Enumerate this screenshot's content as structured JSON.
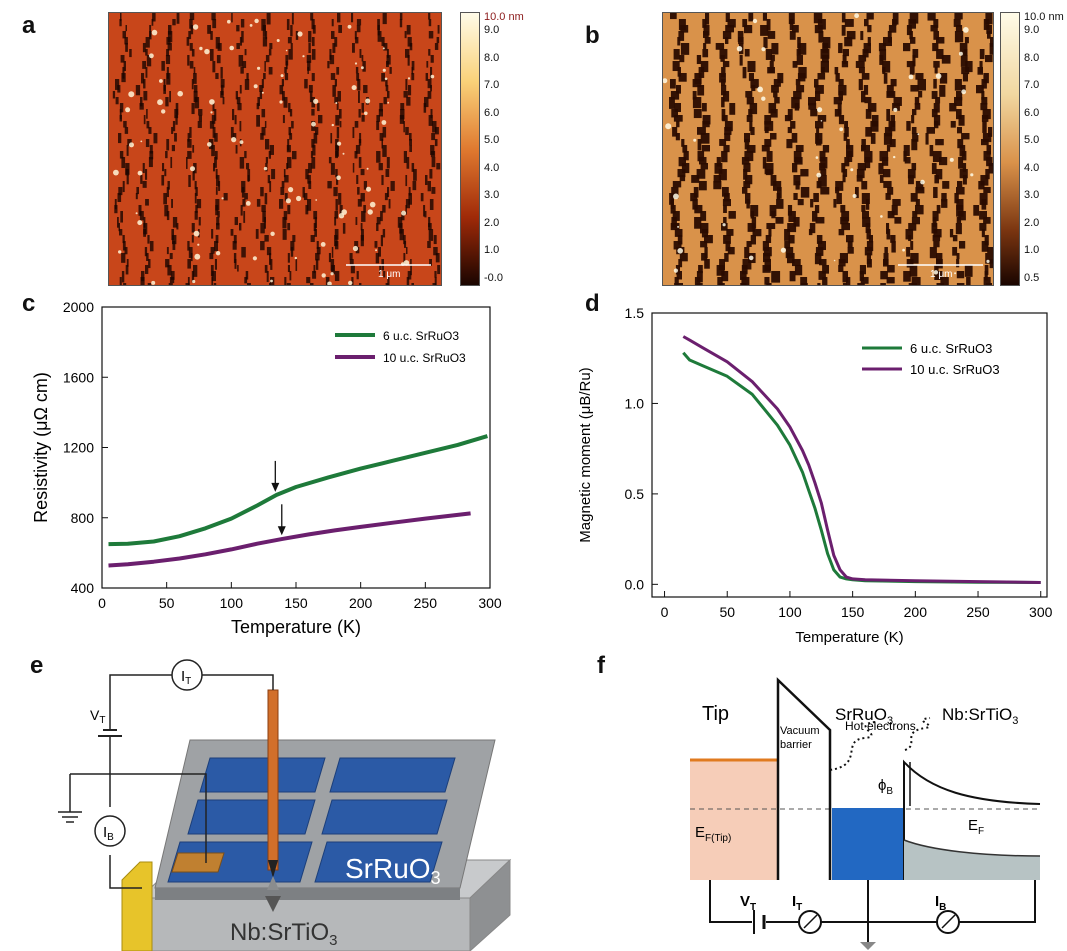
{
  "panels": {
    "a": {
      "letter": "a",
      "scale_bar": "1 μm",
      "colorbar_unit": "10.0 nm",
      "colorbar_ticks": [
        "9.0",
        "8.0",
        "7.0",
        "6.0",
        "5.0",
        "4.0",
        "3.0",
        "2.0",
        "1.0",
        "-0.0"
      ],
      "colors": {
        "low": "#1a0500",
        "mid": "#c8461a",
        "high": "#fff6d8"
      }
    },
    "b": {
      "letter": "b",
      "scale_bar": "1 μm",
      "colorbar_unit": "10.0 nm",
      "colorbar_ticks": [
        "9.0",
        "8.0",
        "7.0",
        "6.0",
        "5.0",
        "4.0",
        "3.0",
        "2.0",
        "1.0",
        "0.5"
      ],
      "colors": {
        "low": "#2a0c00",
        "mid": "#d9924a",
        "high": "#fffbe8"
      }
    },
    "e": {
      "letter": "e",
      "current_label": "I",
      "current_sub": "T",
      "bias_label": "V",
      "bias_sub": "T",
      "base_label": "I",
      "base_sub": "B",
      "film_label": "SrRuO",
      "film_sub": "3",
      "substrate_label": "Nb:SrTiO",
      "substrate_sub": "3"
    },
    "f": {
      "letter": "f",
      "tip_label": "Tip",
      "vacuum_label_1": "Vacuum",
      "vacuum_label_2": "barrier",
      "film_label": "SrRuO",
      "film_sub": "3",
      "substrate_label": "Nb:SrTiO",
      "substrate_sub": "3",
      "hot_electrons_label": "Hot electrons",
      "phi_label": "ϕ",
      "phi_sub": "B",
      "ef_label": "E",
      "ef_sub": "F",
      "eftip_label": "E",
      "eftip_sub": "F(Tip)",
      "vt_label": "V",
      "vt_sub": "T",
      "it_label": "I",
      "it_sub": "T",
      "ib_label": "I",
      "ib_sub": "B"
    }
  },
  "chart_data": [
    {
      "panel": "c",
      "type": "line",
      "xlabel": "Temperature (K)",
      "ylabel": "Resistivity (μΩ cm)",
      "xlim": [
        0,
        300
      ],
      "ylim": [
        400,
        2000
      ],
      "xticks": [
        0,
        50,
        100,
        150,
        200,
        250,
        300
      ],
      "yticks": [
        400,
        800,
        1200,
        1600,
        2000
      ],
      "legend_position": "top-right",
      "series": [
        {
          "name": "6 u.c. SrRuO3",
          "color": "#1e7a3a",
          "x": [
            5,
            20,
            40,
            60,
            80,
            100,
            120,
            135,
            150,
            175,
            200,
            225,
            250,
            275,
            298
          ],
          "y": [
            650,
            652,
            665,
            695,
            740,
            795,
            870,
            930,
            975,
            1030,
            1080,
            1125,
            1170,
            1215,
            1265
          ]
        },
        {
          "name": "10 u.c. SrRuO3",
          "color": "#6b1f6e",
          "x": [
            5,
            20,
            40,
            60,
            80,
            100,
            120,
            140,
            160,
            180,
            200,
            225,
            250,
            285
          ],
          "y": [
            528,
            535,
            550,
            568,
            592,
            620,
            652,
            680,
            705,
            728,
            748,
            772,
            795,
            825
          ]
        }
      ],
      "annotations": [
        {
          "type": "arrow",
          "x": 134,
          "y": 930
        },
        {
          "type": "arrow",
          "x": 139,
          "y": 683
        }
      ]
    },
    {
      "panel": "d",
      "type": "line",
      "xlabel": "Temperature (K)",
      "ylabel": "Magnetic moment (μB/Ru)",
      "xlim": [
        -10,
        305
      ],
      "ylim": [
        -0.07,
        1.5
      ],
      "xticks": [
        0,
        50,
        100,
        150,
        200,
        250,
        300
      ],
      "yticks": [
        0.0,
        0.5,
        1.0,
        1.5
      ],
      "legend_position": "top-right",
      "series": [
        {
          "name": "6 u.c. SrRuO3",
          "color": "#1e7a3a",
          "x": [
            15,
            20,
            30,
            50,
            70,
            90,
            100,
            110,
            115,
            120,
            125,
            130,
            135,
            140,
            145,
            150,
            160,
            200,
            250,
            300
          ],
          "y": [
            1.28,
            1.24,
            1.21,
            1.15,
            1.05,
            0.88,
            0.77,
            0.62,
            0.52,
            0.42,
            0.3,
            0.17,
            0.08,
            0.04,
            0.03,
            0.025,
            0.02,
            0.015,
            0.012,
            0.01
          ]
        },
        {
          "name": "10 u.c. SrRuO3",
          "color": "#6b1f6e",
          "x": [
            15,
            20,
            30,
            50,
            70,
            90,
            100,
            110,
            115,
            120,
            125,
            130,
            135,
            140,
            145,
            150,
            160,
            200,
            250,
            300
          ],
          "y": [
            1.37,
            1.35,
            1.31,
            1.23,
            1.12,
            0.97,
            0.87,
            0.74,
            0.66,
            0.56,
            0.45,
            0.3,
            0.16,
            0.08,
            0.04,
            0.03,
            0.025,
            0.02,
            0.015,
            0.01
          ]
        }
      ]
    }
  ]
}
